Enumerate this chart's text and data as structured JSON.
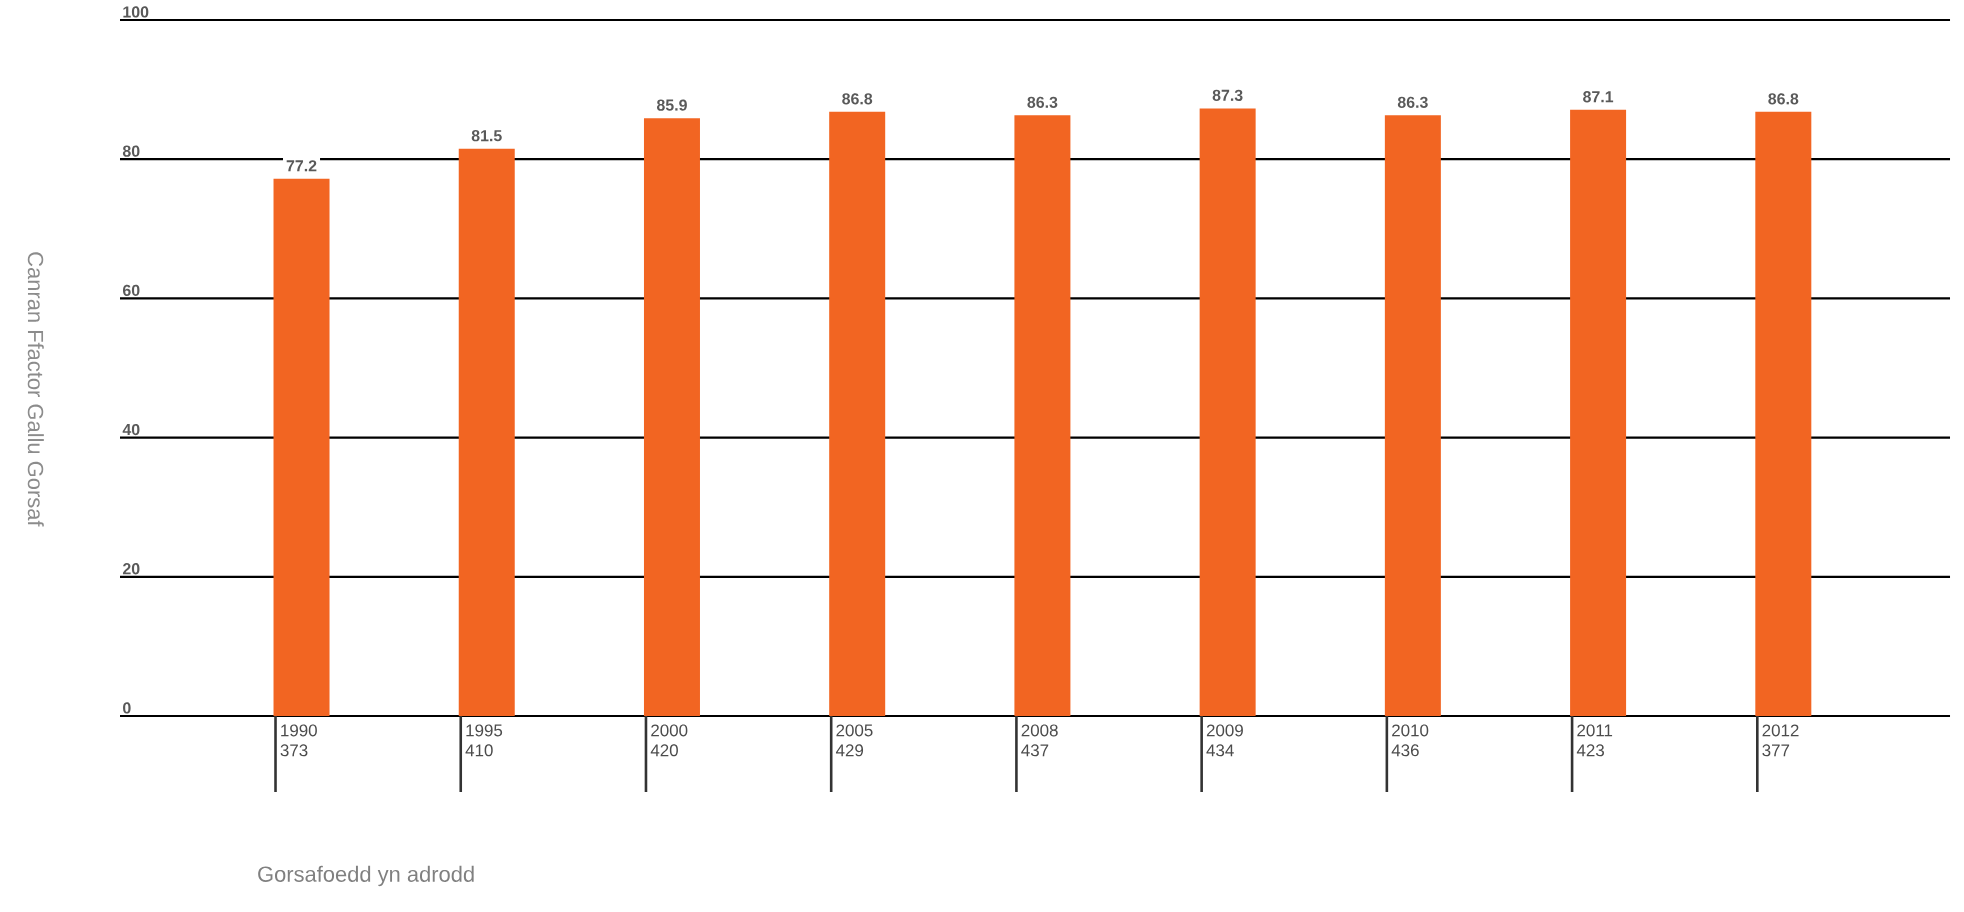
{
  "chart_data": {
    "type": "bar",
    "ylabel": "Canran Ffactor Gallu Gorsaf",
    "xlabel": "Gorsafoedd yn adrodd",
    "categories": [
      "1990 373",
      "1995 410",
      "2000 420",
      "2005 429",
      "2008 437",
      "2009 434",
      "2010 436",
      "2011 423",
      "2012 377"
    ],
    "values": [
      77.2,
      81.5,
      85.9,
      86.8,
      86.3,
      87.3,
      86.3,
      87.1,
      86.8
    ],
    "color": "#f26522",
    "value_labels": [
      "77.2",
      "81.5",
      "85.9",
      "86.8",
      "86.3",
      "87.3",
      "86.3",
      "87.1",
      "86.8"
    ],
    "ylim": [
      0,
      100
    ],
    "yticks": [
      0,
      20,
      40,
      60,
      80,
      100
    ],
    "grid": "y"
  }
}
